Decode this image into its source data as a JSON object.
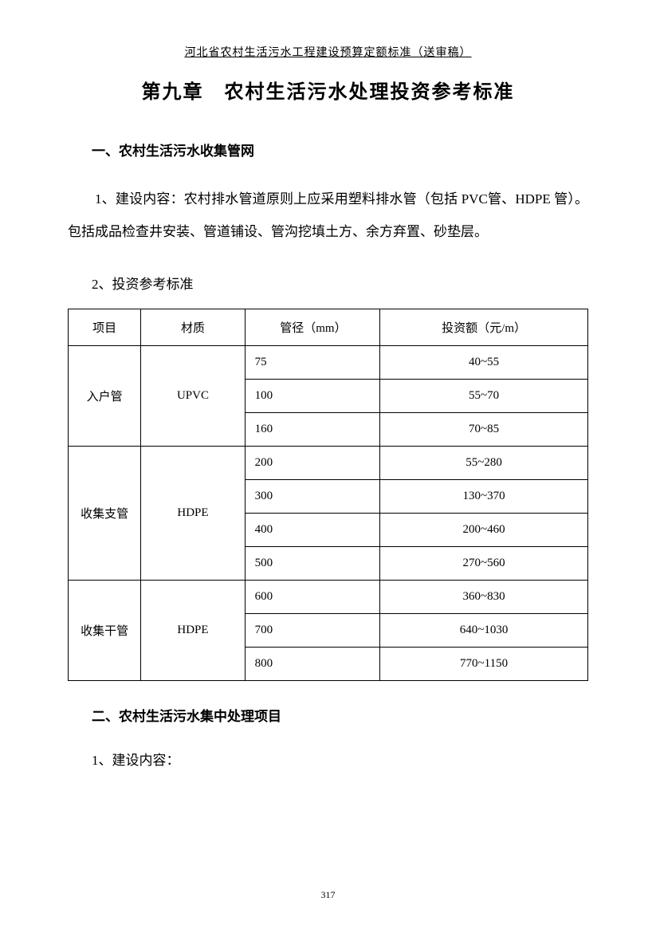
{
  "header": "河北省农村生活污水工程建设预算定额标准（送审稿）",
  "chapter_title": "第九章　农村生活污水处理投资参考标准",
  "section1": {
    "heading": "一、农村生活污水收集管网",
    "sub1_label": "1、建设内容：",
    "sub1_text": "农村排水管道原则上应采用塑料排水管（包括 PVC管、HDPE 管）。包括成品检查井安装、管道铺设、管沟挖填土方、余方弃置、砂垫层。",
    "sub2_label": "2、投资参考标准"
  },
  "table": {
    "headers": {
      "item": "项目",
      "material": "材质",
      "diameter": "管径（mm）",
      "investment": "投资额（元/m）"
    },
    "groups": [
      {
        "item": "入户管",
        "material": "UPVC",
        "rows": [
          {
            "diameter": "75",
            "investment": "40~55"
          },
          {
            "diameter": "100",
            "investment": "55~70"
          },
          {
            "diameter": "160",
            "investment": "70~85"
          }
        ]
      },
      {
        "item": "收集支管",
        "material": "HDPE",
        "rows": [
          {
            "diameter": "200",
            "investment": "55~280"
          },
          {
            "diameter": "300",
            "investment": "130~370"
          },
          {
            "diameter": "400",
            "investment": "200~460"
          },
          {
            "diameter": "500",
            "investment": "270~560"
          }
        ]
      },
      {
        "item": "收集干管",
        "material": "HDPE",
        "rows": [
          {
            "diameter": "600",
            "investment": "360~830"
          },
          {
            "diameter": "700",
            "investment": "640~1030"
          },
          {
            "diameter": "800",
            "investment": "770~1150"
          }
        ]
      }
    ]
  },
  "section2": {
    "heading": "二、农村生活污水集中处理项目",
    "sub1_label": "1、建设内容："
  },
  "page_number": "317"
}
